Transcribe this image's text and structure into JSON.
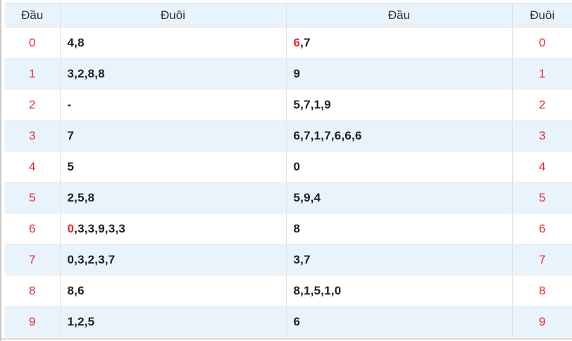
{
  "colors": {
    "accent_red": "#e9262e",
    "header_bg": "#e9f3fc",
    "alt_row_bg": "#e9f3fc",
    "border": "#e2e2e2",
    "value_text": "#1f1f1f"
  },
  "table": {
    "columns": [
      {
        "label": "Đầu"
      },
      {
        "label": "Đuôi"
      },
      {
        "label": "Đầu"
      },
      {
        "label": "Đuôi"
      }
    ],
    "rows": [
      {
        "digit": "0",
        "left_tails": [
          {
            "text": "4,8",
            "red": false
          }
        ],
        "right_heads": [
          {
            "text": "6",
            "red": true
          },
          {
            "text": ",7",
            "red": false
          }
        ]
      },
      {
        "digit": "1",
        "left_tails": [
          {
            "text": "3,2,8,8",
            "red": false
          }
        ],
        "right_heads": [
          {
            "text": "9",
            "red": false
          }
        ]
      },
      {
        "digit": "2",
        "left_tails": [
          {
            "text": "-",
            "red": false
          }
        ],
        "right_heads": [
          {
            "text": "5,7,1,9",
            "red": false
          }
        ]
      },
      {
        "digit": "3",
        "left_tails": [
          {
            "text": "7",
            "red": false
          }
        ],
        "right_heads": [
          {
            "text": "6,7,1,7,6,6,6",
            "red": false
          }
        ]
      },
      {
        "digit": "4",
        "left_tails": [
          {
            "text": "5",
            "red": false
          }
        ],
        "right_heads": [
          {
            "text": "0",
            "red": false
          }
        ]
      },
      {
        "digit": "5",
        "left_tails": [
          {
            "text": "2,5,8",
            "red": false
          }
        ],
        "right_heads": [
          {
            "text": "5,9,4",
            "red": false
          }
        ]
      },
      {
        "digit": "6",
        "left_tails": [
          {
            "text": "0",
            "red": true
          },
          {
            "text": ",3,3,9,3,3",
            "red": false
          }
        ],
        "right_heads": [
          {
            "text": "8",
            "red": false
          }
        ]
      },
      {
        "digit": "7",
        "left_tails": [
          {
            "text": "0,3,2,3,7",
            "red": false
          }
        ],
        "right_heads": [
          {
            "text": "3,7",
            "red": false
          }
        ]
      },
      {
        "digit": "8",
        "left_tails": [
          {
            "text": "8,6",
            "red": false
          }
        ],
        "right_heads": [
          {
            "text": "8,1,5,1,0",
            "red": false
          }
        ]
      },
      {
        "digit": "9",
        "left_tails": [
          {
            "text": "1,2,5",
            "red": false
          }
        ],
        "right_heads": [
          {
            "text": "6",
            "red": false
          }
        ]
      }
    ]
  }
}
